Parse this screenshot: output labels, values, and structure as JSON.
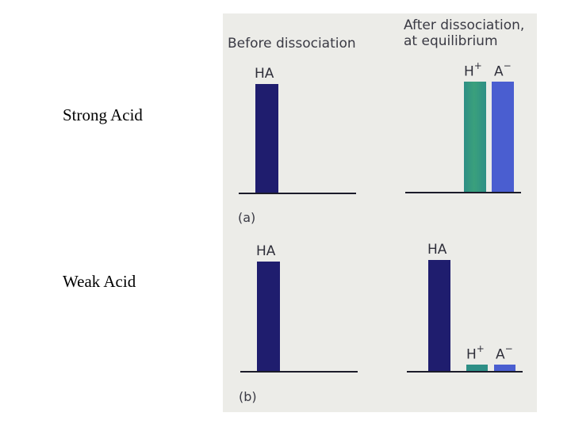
{
  "rows": {
    "strong": "Strong Acid",
    "weak": "Weak Acid"
  },
  "figure": {
    "heading_before": "Before dissociation",
    "heading_after_line1": "After dissociation,",
    "heading_after_line2": "at equilibrium",
    "panel_a": "(a)",
    "panel_b": "(b)",
    "species": {
      "ha": "HA",
      "h_base": "H",
      "h_charge": "+",
      "a_base": "A",
      "a_charge": "−"
    }
  },
  "colors": {
    "ha": "#1f1d6e",
    "h_plus": "#2e8f86",
    "a_minus": "#4a5ed0",
    "background": "#ecece8"
  }
}
